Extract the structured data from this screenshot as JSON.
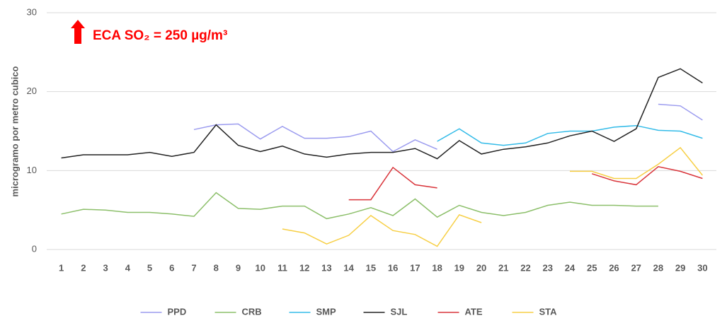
{
  "chart_data": {
    "type": "line",
    "y_label": "microgramo por metro cubico",
    "annotation": "ECA SO₂ = 250 µg/m³",
    "categories": [
      "1",
      "2",
      "3",
      "4",
      "5",
      "6",
      "7",
      "8",
      "9",
      "10",
      "11",
      "12",
      "13",
      "14",
      "15",
      "16",
      "17",
      "18",
      "19",
      "20",
      "21",
      "22",
      "23",
      "24",
      "25",
      "26",
      "27",
      "28",
      "29",
      "30"
    ],
    "series": [
      {
        "name": "PPD",
        "color": "#9b9bef",
        "values": [
          null,
          null,
          null,
          null,
          null,
          null,
          15.2,
          15.8,
          15.9,
          14.0,
          15.6,
          14.1,
          14.1,
          14.3,
          15.0,
          12.4,
          13.9,
          12.7,
          null,
          null,
          null,
          null,
          null,
          null,
          null,
          null,
          null,
          18.4,
          18.2,
          16.4
        ]
      },
      {
        "name": "CRB",
        "color": "#8cbf6a",
        "values": [
          4.5,
          5.1,
          5.0,
          4.7,
          4.7,
          4.5,
          4.2,
          7.2,
          5.2,
          5.1,
          5.5,
          5.5,
          3.9,
          4.5,
          5.3,
          4.3,
          6.4,
          4.1,
          5.6,
          4.7,
          4.3,
          4.7,
          5.6,
          6.0,
          5.6,
          5.6,
          5.5,
          5.5,
          null,
          null
        ]
      },
      {
        "name": "SMP",
        "color": "#33bbe8",
        "values": [
          null,
          null,
          null,
          null,
          null,
          null,
          null,
          null,
          null,
          null,
          null,
          null,
          null,
          null,
          null,
          null,
          null,
          13.7,
          15.3,
          13.5,
          13.2,
          13.5,
          14.7,
          15.0,
          15.0,
          15.5,
          15.7,
          15.1,
          15.0,
          14.1
        ]
      },
      {
        "name": "SJL",
        "color": "#222222",
        "values": [
          11.6,
          12.0,
          12.0,
          12.0,
          12.3,
          11.8,
          12.3,
          15.8,
          13.2,
          12.4,
          13.1,
          12.1,
          11.7,
          12.1,
          12.3,
          12.3,
          12.8,
          11.5,
          13.8,
          12.1,
          12.7,
          13.0,
          13.5,
          14.4,
          15.0,
          13.7,
          15.3,
          21.8,
          22.9,
          21.1
        ]
      },
      {
        "name": "ATE",
        "color": "#d9343a",
        "values": [
          null,
          null,
          null,
          null,
          null,
          null,
          null,
          null,
          null,
          null,
          null,
          null,
          null,
          6.3,
          6.3,
          10.4,
          8.2,
          7.8,
          null,
          null,
          null,
          null,
          null,
          null,
          9.6,
          8.7,
          8.2,
          10.5,
          9.9,
          9.0
        ]
      },
      {
        "name": "STA",
        "color": "#f7cf45",
        "values": [
          null,
          null,
          null,
          null,
          null,
          null,
          null,
          null,
          null,
          null,
          2.6,
          2.1,
          0.7,
          1.8,
          4.3,
          2.4,
          1.9,
          0.4,
          4.4,
          3.4,
          null,
          null,
          null,
          9.9,
          9.9,
          9.0,
          9.0,
          10.8,
          12.9,
          9.4
        ]
      }
    ],
    "ylim": [
      0,
      30
    ],
    "yticks": [
      0,
      10,
      20,
      30
    ],
    "grid": true,
    "legend": "bottom"
  }
}
